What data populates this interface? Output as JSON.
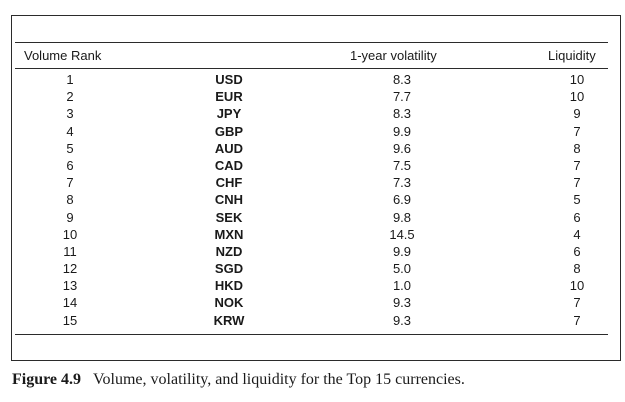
{
  "table": {
    "headers": {
      "rank": "Volume Rank",
      "volatility": "1-year volatility",
      "liquidity": "Liquidity"
    },
    "rows": [
      {
        "rank": "1",
        "currency": "USD",
        "volatility": "8.3",
        "liquidity": "10"
      },
      {
        "rank": "2",
        "currency": "EUR",
        "volatility": "7.7",
        "liquidity": "10"
      },
      {
        "rank": "3",
        "currency": "JPY",
        "volatility": "8.3",
        "liquidity": "9"
      },
      {
        "rank": "4",
        "currency": "GBP",
        "volatility": "9.9",
        "liquidity": "7"
      },
      {
        "rank": "5",
        "currency": "AUD",
        "volatility": "9.6",
        "liquidity": "8"
      },
      {
        "rank": "6",
        "currency": "CAD",
        "volatility": "7.5",
        "liquidity": "7"
      },
      {
        "rank": "7",
        "currency": "CHF",
        "volatility": "7.3",
        "liquidity": "7"
      },
      {
        "rank": "8",
        "currency": "CNH",
        "volatility": "6.9",
        "liquidity": "5"
      },
      {
        "rank": "9",
        "currency": "SEK",
        "volatility": "9.8",
        "liquidity": "6"
      },
      {
        "rank": "10",
        "currency": "MXN",
        "volatility": "14.5",
        "liquidity": "4"
      },
      {
        "rank": "11",
        "currency": "NZD",
        "volatility": "9.9",
        "liquidity": "6"
      },
      {
        "rank": "12",
        "currency": "SGD",
        "volatility": "5.0",
        "liquidity": "8"
      },
      {
        "rank": "13",
        "currency": "HKD",
        "volatility": "1.0",
        "liquidity": "10"
      },
      {
        "rank": "14",
        "currency": "NOK",
        "volatility": "9.3",
        "liquidity": "7"
      },
      {
        "rank": "15",
        "currency": "KRW",
        "volatility": "9.3",
        "liquidity": "7"
      }
    ]
  },
  "caption": {
    "label": "Figure 4.9",
    "text": "Volume, volatility, and liquidity for the Top 15 currencies."
  }
}
